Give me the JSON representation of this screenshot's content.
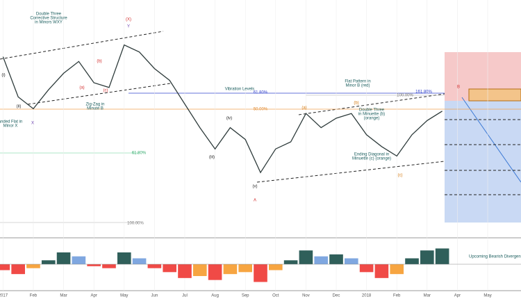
{
  "chart_data": [
    {
      "type": "line",
      "x": [
        0,
        0.5,
        1,
        1.5,
        2,
        2.5,
        3,
        3.5,
        4,
        4.5,
        5,
        5.5,
        6,
        6.5,
        7,
        7.5,
        8,
        8.5,
        9,
        9.5,
        10,
        10.5,
        11,
        11.5,
        12,
        12.5,
        13,
        13.5,
        14,
        14.5
      ],
      "series": [
        {
          "color": "#2e3b3b",
          "values": [
            76,
            59,
            54,
            62,
            69,
            74,
            65,
            63,
            81,
            78,
            71,
            66,
            56,
            46,
            37,
            46,
            41,
            27,
            37,
            40,
            52,
            46,
            50,
            52,
            43,
            38,
            34,
            43,
            49,
            53
          ]
        }
      ],
      "xlim": [
        -0.1,
        17.1
      ],
      "ylim": [
        0,
        100
      ],
      "xticks": [
        {
          "value": 0,
          "label": "2017"
        },
        {
          "value": 1,
          "label": "Feb"
        },
        {
          "value": 2,
          "label": "Mar"
        },
        {
          "value": 3,
          "label": "Apr"
        },
        {
          "value": 4,
          "label": "May"
        },
        {
          "value": 5,
          "label": "Jun"
        },
        {
          "value": 6,
          "label": "Jul"
        },
        {
          "value": 7,
          "label": "Aug"
        },
        {
          "value": 8,
          "label": "Sep"
        },
        {
          "value": 9,
          "label": "Oct"
        },
        {
          "value": 10,
          "label": "Nov"
        },
        {
          "value": 11,
          "label": "Dec"
        },
        {
          "value": 12,
          "label": "2018"
        },
        {
          "value": 13,
          "label": "Feb"
        },
        {
          "value": 14,
          "label": "Mar"
        },
        {
          "value": 15,
          "label": "Apr"
        },
        {
          "value": 16,
          "label": "May"
        }
      ],
      "grid": true,
      "annotations": [
        [
          "Double Three",
          "Corrective Structure",
          "in Minors WXY"
        ],
        [
          "Vibration Levels"
        ],
        [
          "Zig-Zag in",
          "Minute B"
        ],
        [
          "anded Flat in",
          "Minor X"
        ],
        [
          "Flat Pattern in",
          "Minor B (red)"
        ],
        [
          "Double Three",
          "in Minuette (b)",
          "(orange)"
        ],
        [
          "Ending Diagonal in",
          "Minuette (c) (orange)"
        ],
        [
          "(X)"
        ],
        [
          "Y"
        ],
        [
          "X"
        ],
        [
          "A"
        ],
        [
          "B"
        ],
        [
          "(iii)"
        ],
        [
          "(iv)"
        ],
        [
          "(v)"
        ],
        [
          "(a)"
        ],
        [
          "(b)"
        ],
        [
          "(c)"
        ],
        [
          "(i)"
        ],
        [
          "(ii)"
        ],
        [
          "(b)"
        ],
        [
          "(a)"
        ],
        [
          "(c)"
        ],
        [
          "61.80%"
        ],
        [
          "100.00%"
        ],
        [
          "61.80%"
        ],
        [
          "50.00%"
        ],
        [
          "161.80%"
        ],
        [
          "100.00%"
        ]
      ]
    },
    {
      "type": "bar",
      "x": [
        0,
        0.5,
        1,
        1.5,
        2,
        2.5,
        3,
        3.5,
        4,
        4.5,
        5,
        5.5,
        6,
        6.5,
        7,
        7.5,
        8,
        8.5,
        9,
        9.5,
        10,
        10.5,
        11,
        11.5,
        12,
        12.5,
        13,
        13.5,
        14,
        14.5
      ],
      "values": [
        -3,
        -5,
        -2,
        2,
        6,
        4,
        -1,
        -2,
        6,
        3,
        -2,
        -4,
        -7,
        -6,
        -8,
        -5,
        -4,
        -9,
        -3,
        2,
        7,
        4,
        5,
        3,
        -4,
        -7,
        -5,
        3,
        7,
        8
      ],
      "xlim": [
        -0.1,
        17.1
      ],
      "ylim": [
        -12,
        12
      ],
      "colors": {
        "pos_up": "#2f5f5a",
        "pos_down": "#7fa7e0",
        "neg_down": "#f04a46",
        "neg_up": "#f7a541"
      },
      "annotations": [
        [
          "Upcoming Bearish Divergence"
        ]
      ]
    }
  ]
}
